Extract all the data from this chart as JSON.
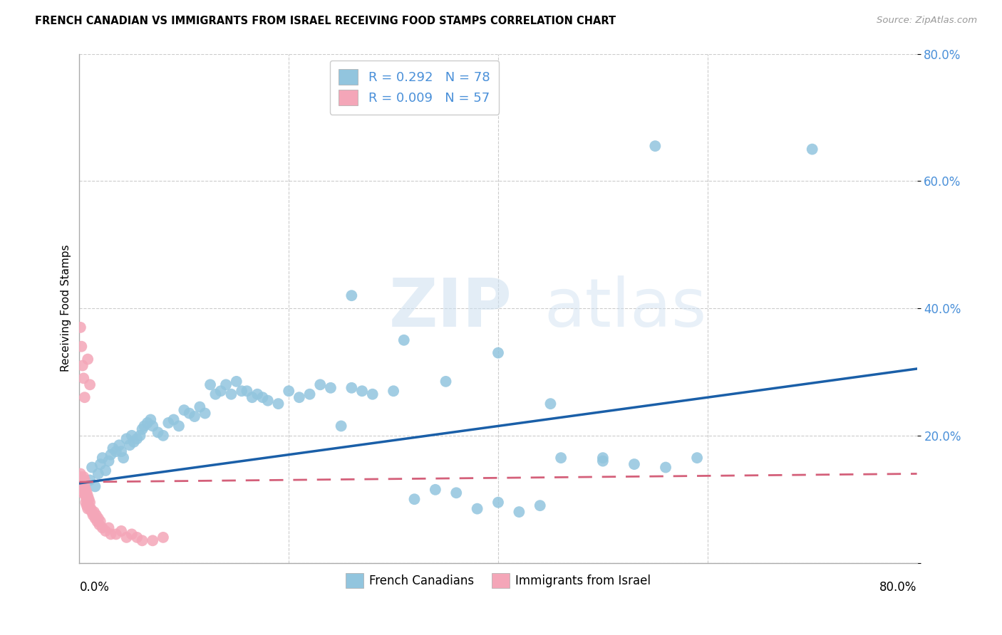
{
  "title": "FRENCH CANADIAN VS IMMIGRANTS FROM ISRAEL RECEIVING FOOD STAMPS CORRELATION CHART",
  "source": "Source: ZipAtlas.com",
  "ylabel": "Receiving Food Stamps",
  "xlim": [
    0,
    0.8
  ],
  "ylim": [
    0,
    0.8
  ],
  "yticks": [
    0.0,
    0.2,
    0.4,
    0.6,
    0.8
  ],
  "legend_blue_R": "R = 0.292",
  "legend_blue_N": "N = 78",
  "legend_pink_R": "R = 0.009",
  "legend_pink_N": "N = 57",
  "blue_color": "#92c5de",
  "pink_color": "#f4a6b8",
  "trend_blue": "#1a5fa8",
  "trend_pink": "#d4607a",
  "watermark_zip": "ZIP",
  "watermark_atlas": "atlas",
  "blue_scatter_x": [
    0.01,
    0.012,
    0.015,
    0.018,
    0.02,
    0.022,
    0.025,
    0.028,
    0.03,
    0.032,
    0.035,
    0.038,
    0.04,
    0.042,
    0.045,
    0.048,
    0.05,
    0.052,
    0.055,
    0.058,
    0.06,
    0.062,
    0.065,
    0.068,
    0.07,
    0.075,
    0.08,
    0.085,
    0.09,
    0.095,
    0.1,
    0.105,
    0.11,
    0.115,
    0.12,
    0.125,
    0.13,
    0.135,
    0.14,
    0.145,
    0.15,
    0.155,
    0.16,
    0.165,
    0.17,
    0.175,
    0.18,
    0.19,
    0.2,
    0.21,
    0.22,
    0.23,
    0.24,
    0.25,
    0.26,
    0.27,
    0.28,
    0.3,
    0.32,
    0.34,
    0.36,
    0.38,
    0.4,
    0.42,
    0.44,
    0.46,
    0.5,
    0.53,
    0.56,
    0.59,
    0.26,
    0.31,
    0.35,
    0.4,
    0.45,
    0.5,
    0.55,
    0.7
  ],
  "blue_scatter_y": [
    0.13,
    0.15,
    0.12,
    0.14,
    0.155,
    0.165,
    0.145,
    0.16,
    0.17,
    0.18,
    0.175,
    0.185,
    0.175,
    0.165,
    0.195,
    0.185,
    0.2,
    0.19,
    0.195,
    0.2,
    0.21,
    0.215,
    0.22,
    0.225,
    0.215,
    0.205,
    0.2,
    0.22,
    0.225,
    0.215,
    0.24,
    0.235,
    0.23,
    0.245,
    0.235,
    0.28,
    0.265,
    0.27,
    0.28,
    0.265,
    0.285,
    0.27,
    0.27,
    0.26,
    0.265,
    0.26,
    0.255,
    0.25,
    0.27,
    0.26,
    0.265,
    0.28,
    0.275,
    0.215,
    0.275,
    0.27,
    0.265,
    0.27,
    0.1,
    0.115,
    0.11,
    0.085,
    0.095,
    0.08,
    0.09,
    0.165,
    0.165,
    0.155,
    0.15,
    0.165,
    0.42,
    0.35,
    0.285,
    0.33,
    0.25,
    0.16,
    0.655,
    0.65
  ],
  "pink_scatter_x": [
    0.001,
    0.001,
    0.001,
    0.002,
    0.002,
    0.002,
    0.003,
    0.003,
    0.003,
    0.004,
    0.004,
    0.004,
    0.005,
    0.005,
    0.005,
    0.006,
    0.006,
    0.006,
    0.007,
    0.007,
    0.007,
    0.008,
    0.008,
    0.008,
    0.009,
    0.009,
    0.01,
    0.01,
    0.011,
    0.012,
    0.013,
    0.014,
    0.015,
    0.016,
    0.017,
    0.018,
    0.019,
    0.02,
    0.022,
    0.025,
    0.028,
    0.03,
    0.035,
    0.04,
    0.045,
    0.05,
    0.055,
    0.06,
    0.07,
    0.08,
    0.001,
    0.002,
    0.003,
    0.004,
    0.005,
    0.008,
    0.01
  ],
  "pink_scatter_y": [
    0.13,
    0.14,
    0.12,
    0.125,
    0.135,
    0.115,
    0.12,
    0.13,
    0.11,
    0.125,
    0.135,
    0.115,
    0.12,
    0.13,
    0.11,
    0.105,
    0.115,
    0.095,
    0.1,
    0.11,
    0.09,
    0.095,
    0.105,
    0.085,
    0.09,
    0.1,
    0.085,
    0.095,
    0.085,
    0.08,
    0.075,
    0.08,
    0.07,
    0.075,
    0.065,
    0.07,
    0.06,
    0.065,
    0.055,
    0.05,
    0.055,
    0.045,
    0.045,
    0.05,
    0.04,
    0.045,
    0.04,
    0.035,
    0.035,
    0.04,
    0.37,
    0.34,
    0.31,
    0.29,
    0.26,
    0.32,
    0.28
  ],
  "blue_trend_x0": 0.0,
  "blue_trend_y0": 0.125,
  "blue_trend_x1": 0.8,
  "blue_trend_y1": 0.305,
  "pink_trend_x0": 0.0,
  "pink_trend_y0": 0.127,
  "pink_trend_x1": 0.8,
  "pink_trend_y1": 0.14
}
